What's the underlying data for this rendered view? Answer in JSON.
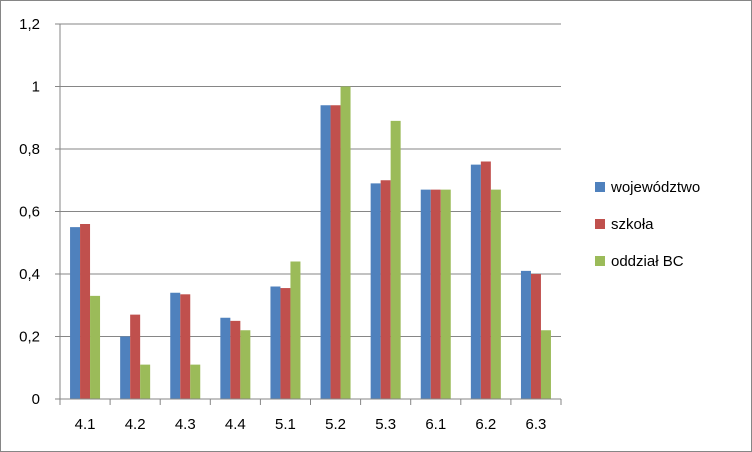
{
  "chart_data": {
    "type": "bar",
    "title": "",
    "xlabel": "",
    "ylabel": "",
    "categories": [
      "4.1",
      "4.2",
      "4.3",
      "4.4",
      "5.1",
      "5.2",
      "5.3",
      "6.1",
      "6.2",
      "6.3"
    ],
    "series": [
      {
        "name": "województwo",
        "color": "#4f81bd",
        "values": [
          0.55,
          0.2,
          0.34,
          0.26,
          0.36,
          0.94,
          0.69,
          0.67,
          0.75,
          0.41
        ]
      },
      {
        "name": "szkoła",
        "color": "#c0504d",
        "values": [
          0.56,
          0.27,
          0.335,
          0.25,
          0.355,
          0.94,
          0.7,
          0.67,
          0.76,
          0.4
        ]
      },
      {
        "name": "oddział BC",
        "color": "#9bbb59",
        "values": [
          0.33,
          0.11,
          0.11,
          0.22,
          0.44,
          1.0,
          0.89,
          0.67,
          0.67,
          0.22
        ]
      }
    ],
    "ylim": [
      0,
      1.2
    ],
    "yticks": [
      "0",
      "0,2",
      "0,4",
      "0,6",
      "0,8",
      "1",
      "1,2"
    ],
    "grid": true,
    "legend_position": "right"
  }
}
